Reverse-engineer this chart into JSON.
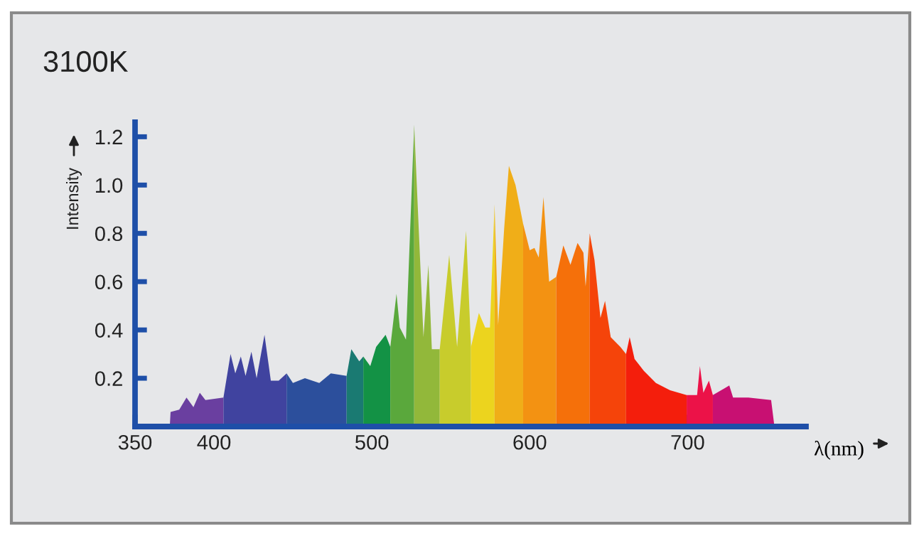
{
  "chart_data": {
    "type": "area",
    "title": "3100K",
    "xlabel": "λ(nm)",
    "ylabel": "Intensity",
    "series": [
      {
        "color": "#6a3fa0",
        "x": [
          372,
          372.5,
          378,
          382.6,
          387,
          391,
          394.6,
          406
        ],
        "values": [
          0,
          0.06,
          0.07,
          0.12,
          0.08,
          0.14,
          0.11,
          0.12
        ]
      },
      {
        "color": "#40439f",
        "x": [
          406,
          410.5,
          413.5,
          417,
          420,
          423.7,
          427,
          432,
          436,
          441,
          446
        ],
        "values": [
          0.12,
          0.3,
          0.22,
          0.29,
          0.21,
          0.31,
          0.2,
          0.38,
          0.19,
          0.19,
          0.22
        ]
      },
      {
        "color": "#2c4f9c",
        "x": [
          446,
          450,
          457.6,
          466.7,
          474,
          484
        ],
        "values": [
          0.22,
          0.18,
          0.2,
          0.18,
          0.22,
          0.21
        ]
      },
      {
        "color": "#1a7a72",
        "x": [
          484,
          487,
          492,
          494.6
        ],
        "values": [
          0.21,
          0.32,
          0.27,
          0.29
        ]
      },
      {
        "color": "#139245",
        "x": [
          494.6,
          499,
          502.7,
          508.7,
          511.7
        ],
        "values": [
          0.29,
          0.25,
          0.33,
          0.38,
          0.33
        ]
      },
      {
        "color": "#5aa83c",
        "x": [
          511.7,
          515.6,
          517.7,
          521.6,
          526.8
        ],
        "values": [
          0.33,
          0.55,
          0.41,
          0.36,
          1.25
        ]
      },
      {
        "color": "#92b83a",
        "x": [
          526.8,
          532.7,
          535.8,
          538,
          543
        ],
        "values": [
          1.25,
          0.37,
          0.67,
          0.32,
          0.32
        ]
      },
      {
        "color": "#c8cc2c",
        "x": [
          543,
          549,
          554,
          559.7,
          562.8
        ],
        "values": [
          0.32,
          0.71,
          0.33,
          0.81,
          0.33
        ]
      },
      {
        "color": "#ecd41e",
        "x": [
          562.8,
          567.8,
          571.8,
          574.8,
          577.7
        ],
        "values": [
          0.33,
          0.47,
          0.41,
          0.41,
          0.92
        ]
      },
      {
        "color": "#f0ae18",
        "x": [
          577.7,
          580,
          583.8,
          586.8,
          591,
          595.8
        ],
        "values": [
          0.92,
          0.42,
          0.82,
          1.08,
          1.0,
          0.84
        ]
      },
      {
        "color": "#f39212",
        "x": [
          595.8,
          600,
          603,
          605.7,
          608.7,
          612.3,
          616.8
        ],
        "values": [
          0.84,
          0.73,
          0.74,
          0.7,
          0.95,
          0.6,
          0.62
        ]
      },
      {
        "color": "#f5700a",
        "x": [
          616.8,
          621.3,
          625.8,
          630.3,
          634,
          635.4,
          638
        ],
        "values": [
          0.62,
          0.75,
          0.67,
          0.76,
          0.72,
          0.58,
          0.8
        ]
      },
      {
        "color": "#f5440a",
        "x": [
          638,
          641,
          644.8,
          647.7,
          651.3,
          657.4,
          661
        ],
        "values": [
          0.8,
          0.69,
          0.45,
          0.52,
          0.37,
          0.33,
          0.3
        ]
      },
      {
        "color": "#f41e0c",
        "x": [
          661,
          663.3,
          666.4,
          672.3,
          679.9,
          688.9,
          699.4
        ],
        "values": [
          0.3,
          0.37,
          0.28,
          0.23,
          0.18,
          0.15,
          0.13
        ]
      },
      {
        "color": "#ec1248",
        "x": [
          699.4,
          706,
          707.8,
          710,
          713.5,
          716
        ],
        "values": [
          0.13,
          0.13,
          0.25,
          0.14,
          0.19,
          0.13
        ]
      },
      {
        "color": "#c81072",
        "x": [
          716,
          726.4,
          728.8,
          738.5,
          752.9,
          755
        ],
        "values": [
          0.13,
          0.17,
          0.12,
          0.12,
          0.11,
          0
        ]
      }
    ],
    "xlim": [
      350,
      775
    ],
    "ylim": [
      0,
      1.26
    ],
    "xticks": [
      350,
      400,
      500,
      600,
      700
    ],
    "yticks": [
      0.2,
      0.4,
      0.6,
      0.8,
      {
        "value": 1.0,
        "label": "1.0"
      },
      1.2
    ]
  }
}
